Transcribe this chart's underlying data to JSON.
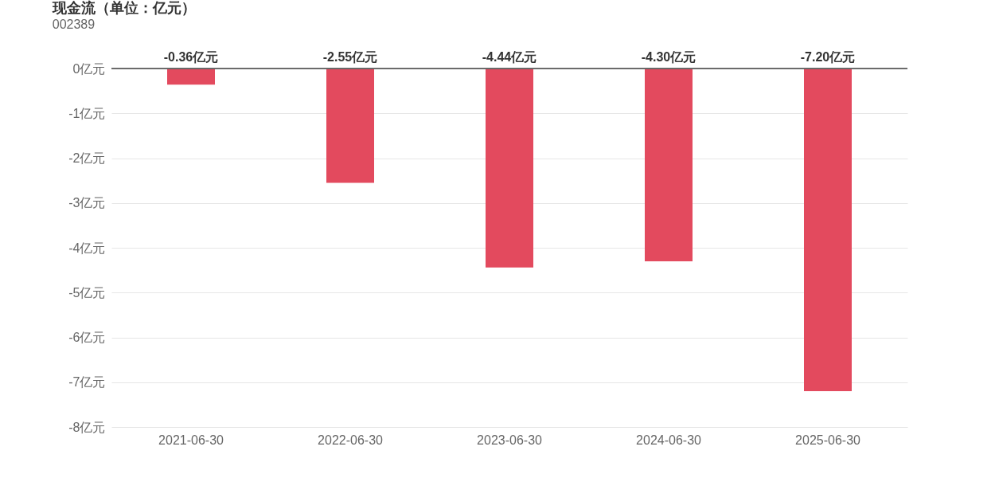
{
  "chart_data": {
    "type": "bar",
    "title": "现金流（单位：亿元）",
    "subtitle": "002389",
    "categories": [
      "2021-06-30",
      "2022-06-30",
      "2023-06-30",
      "2024-06-30",
      "2025-06-30"
    ],
    "values": [
      -0.36,
      -2.55,
      -4.44,
      -4.3,
      -7.2
    ],
    "color": "#e34a5e",
    "value_labels": [
      "-0.36亿元",
      "-2.55亿元",
      "-4.44亿元",
      "-4.30亿元",
      "-7.20亿元"
    ],
    "ylim": [
      -8,
      0
    ],
    "yticks": [
      {
        "value": 0,
        "label": "0亿元"
      },
      {
        "value": -1,
        "label": "-1亿元"
      },
      {
        "value": -2,
        "label": "-2亿元"
      },
      {
        "value": -3,
        "label": "-3亿元"
      },
      {
        "value": -4,
        "label": "-4亿元"
      },
      {
        "value": -5,
        "label": "-5亿元"
      },
      {
        "value": -6,
        "label": "-6亿元"
      },
      {
        "value": -7,
        "label": "-7亿元"
      },
      {
        "value": -8,
        "label": "-8亿元"
      }
    ],
    "grid": "y",
    "legend": false
  }
}
